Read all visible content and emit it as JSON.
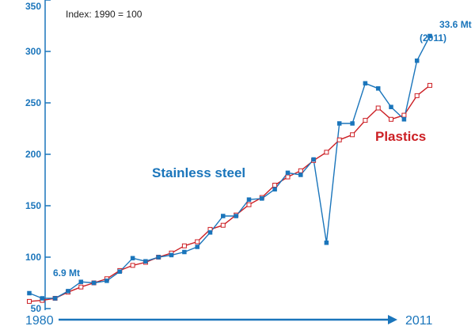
{
  "chart_data": {
    "type": "line",
    "note": "Index: 1990 = 100",
    "x": [
      1980,
      1981,
      1982,
      1983,
      1984,
      1985,
      1986,
      1987,
      1988,
      1989,
      1990,
      1991,
      1992,
      1993,
      1994,
      1995,
      1996,
      1997,
      1998,
      1999,
      2000,
      2001,
      2002,
      2003,
      2004,
      2005,
      2006,
      2007,
      2008,
      2009,
      2010,
      2011
    ],
    "x_start_label": "1980",
    "x_end_label": "2011",
    "y_ticks": [
      50,
      100,
      150,
      200,
      250,
      300,
      350
    ],
    "ylim": [
      50,
      350
    ],
    "series": [
      {
        "name": "Stainless steel",
        "color": "#1a75bb",
        "marker": "filled-square",
        "values": [
          65,
          60,
          60,
          67,
          76,
          75,
          77,
          86,
          99,
          96,
          100,
          102,
          105,
          110,
          124,
          140,
          140,
          156,
          157,
          166,
          182,
          180,
          195,
          114,
          230,
          230,
          269,
          264,
          246,
          234,
          291,
          315
        ]
      },
      {
        "name": "Plastics",
        "color": "#cc1f24",
        "marker": "hollow-square",
        "values": [
          57,
          58,
          60,
          66,
          71,
          75,
          79,
          87,
          92,
          95,
          100,
          104,
          111,
          115,
          127,
          131,
          141,
          151,
          158,
          170,
          178,
          184,
          194,
          202,
          214,
          219,
          233,
          245,
          234,
          238,
          257,
          267
        ]
      }
    ],
    "annotations": {
      "start": "6.9 Mt",
      "end_value": "33.6 Mt",
      "end_year": "(2011)"
    }
  }
}
